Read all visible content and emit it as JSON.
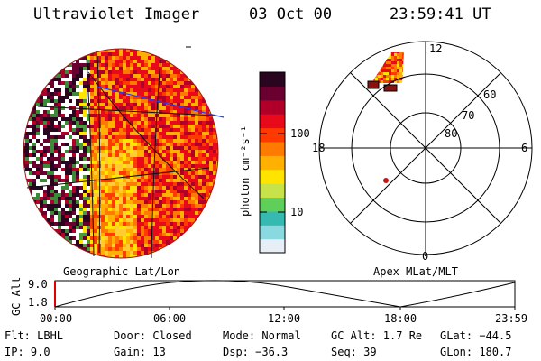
{
  "header": {
    "instrument": "Ultraviolet Imager",
    "date": "03 Oct 00",
    "time": "23:59:41 UT"
  },
  "colorbar": {
    "unit_label": "photon cm⁻²s⁻¹",
    "ticks": [
      "100",
      "10"
    ],
    "colors": [
      "#e8eef5",
      "#8ad8e0",
      "#36b9b0",
      "#5fcf5a",
      "#c8e24a",
      "#ffe400",
      "#ffb000",
      "#ff7a00",
      "#ff3a00",
      "#e80a1a",
      "#b0002a",
      "#6a0030",
      "#2a0520"
    ]
  },
  "image_panel": {
    "label": "Geographic Lat/Lon"
  },
  "polar_panel": {
    "label": "Apex MLat/MLT",
    "mlt_labels": {
      "top": "12",
      "bottom": "0",
      "left": "18",
      "right": "6"
    },
    "lat_labels": [
      "60",
      "70",
      "80"
    ]
  },
  "altitude_plot": {
    "ylabel": "GC Alt",
    "y_ticks": [
      "9.0",
      "1.8"
    ],
    "x_ticks": [
      "00:00",
      "06:00",
      "12:00",
      "18:00",
      "23:59"
    ]
  },
  "status": {
    "filter": "Flt: LBHL",
    "ip": "IP:  9.0",
    "door": "Door: Closed",
    "gain": "Gain: 13",
    "mode": "Mode: Normal",
    "dsp": "Dsp:  −36.3",
    "gc_alt": "GC Alt: 1.7 Re",
    "seq": "Seq: 39",
    "glat": "GLat: −44.5",
    "glon": "GLon: 180.7"
  }
}
